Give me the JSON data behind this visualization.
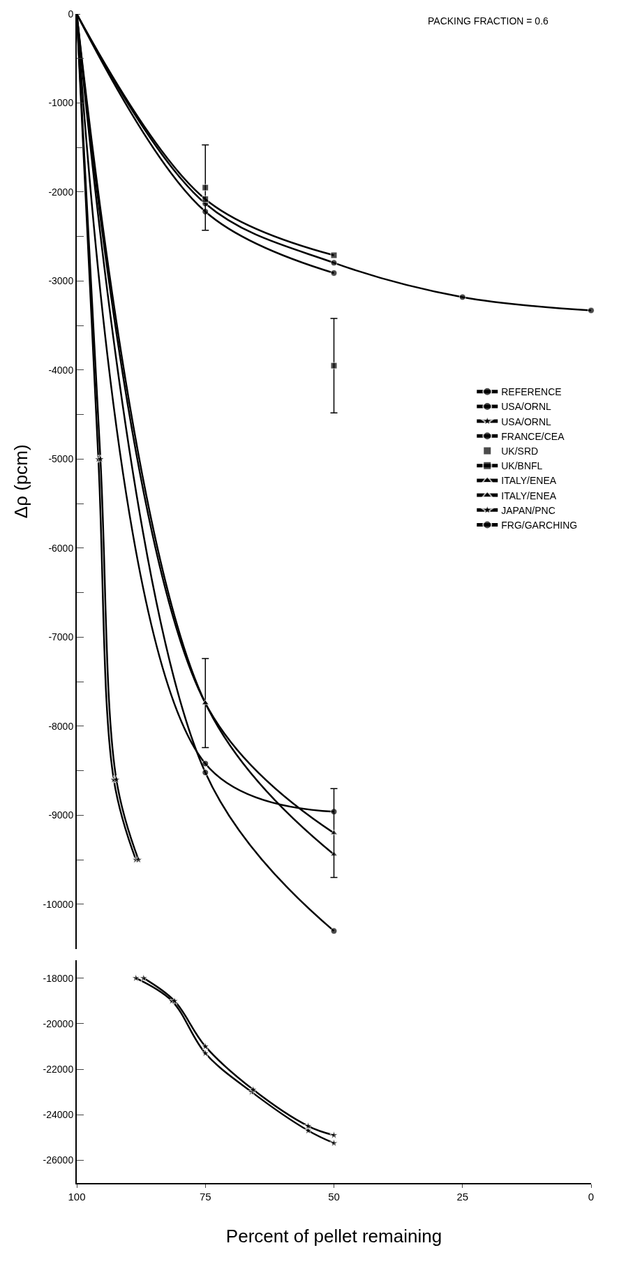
{
  "chart_data": [
    {
      "type": "line",
      "ylabel": "Δρ (pcm)",
      "annotations": [
        "PACKING FRACTION = 0.6"
      ],
      "x": [
        100,
        75,
        50
      ],
      "xlim": [
        100,
        0
      ],
      "xticks": [
        100,
        75,
        50,
        25,
        0
      ],
      "ylim": [
        -10500,
        0
      ],
      "yticks": [
        0,
        {
          "value": -500,
          "label": null
        },
        -1000,
        {
          "value": -1500,
          "label": null
        },
        -2000,
        {
          "value": -2500,
          "label": null
        },
        -3000,
        {
          "value": -3500,
          "label": null
        },
        -4000,
        {
          "value": -4500,
          "label": null
        },
        -5000,
        {
          "value": -5500,
          "label": null
        },
        -6000,
        {
          "value": -6500,
          "label": null
        },
        -7000,
        {
          "value": -7500,
          "label": null
        },
        -8000,
        {
          "value": -8500,
          "label": null
        },
        -9000,
        {
          "value": -9500,
          "label": null
        },
        -10000
      ],
      "tick_labels": "y",
      "legend": "right",
      "line_style": "solid",
      "series": [
        {
          "name": "REFERENCE",
          "color": "#000000",
          "marker": "circle",
          "x": [
            100,
            75,
            50,
            25,
            0
          ],
          "values": [
            0,
            -2130,
            -2795,
            -3180,
            -3330
          ]
        },
        {
          "name": "USA/ORNL",
          "color": "#000000",
          "marker": "circle",
          "values": [
            0,
            -2220,
            -2910
          ]
        },
        {
          "name": "USA/ORNL",
          "color": "#000000",
          "marker": "star",
          "x": [
            100,
            95.8,
            92.8,
            88.5
          ],
          "values": [
            0,
            -5000,
            -8600,
            -9500
          ]
        },
        {
          "name": "FRANCE/CEA",
          "color": "#000000",
          "marker": "circle",
          "values": [
            0,
            -8420,
            -8960
          ]
        },
        {
          "name": "UK/SRD",
          "type": "scatter",
          "color": "#000000",
          "marker": "square",
          "x": [
            75,
            50
          ],
          "values": [
            -1950,
            -3950
          ],
          "errors": [
            480,
            530
          ]
        },
        {
          "name": "UK/BNFL",
          "color": "#000000",
          "marker": "square",
          "values": [
            0,
            -2080,
            -2710
          ]
        },
        {
          "name": "ITALY/ENEA",
          "color": "#000000",
          "marker": "triangle",
          "values": [
            0,
            -7740,
            -9440
          ]
        },
        {
          "name": "ITALY/ENEA",
          "color": "#000000",
          "marker": "triangle",
          "values": [
            0,
            -7740,
            -9200
          ],
          "errors": [
            null,
            500,
            500
          ]
        },
        {
          "name": "JAPAN/PNC",
          "color": "#000000",
          "marker": "star",
          "x": [
            100,
            95.4,
            92.3,
            88
          ],
          "values": [
            0,
            -5000,
            -8600,
            -9500
          ]
        },
        {
          "name": "FRG/GARCHING",
          "color": "#000000",
          "marker": "circle",
          "values": [
            0,
            -8520,
            -10300
          ]
        }
      ]
    },
    {
      "type": "line",
      "xlabel": "Percent of pellet remaining",
      "xlim": [
        100,
        0
      ],
      "xticks": [
        100,
        75,
        50,
        25,
        0
      ],
      "ylim": [
        -27000,
        -17200
      ],
      "yticks": [
        -18000,
        -20000,
        -22000,
        -24000,
        -26000
      ],
      "line_style": "solid",
      "series": [
        {
          "color": "#000000",
          "marker": "star",
          "x": [
            88.5,
            81.5,
            75,
            66,
            55,
            50
          ],
          "values": [
            -18000,
            -19000,
            -21300,
            -23000,
            -24700,
            -25250
          ]
        },
        {
          "color": "#000000",
          "marker": "star",
          "x": [
            87,
            81,
            75,
            65.7,
            55,
            50
          ],
          "values": [
            -18000,
            -19000,
            -21000,
            -22900,
            -24500,
            -24900
          ]
        }
      ]
    }
  ]
}
